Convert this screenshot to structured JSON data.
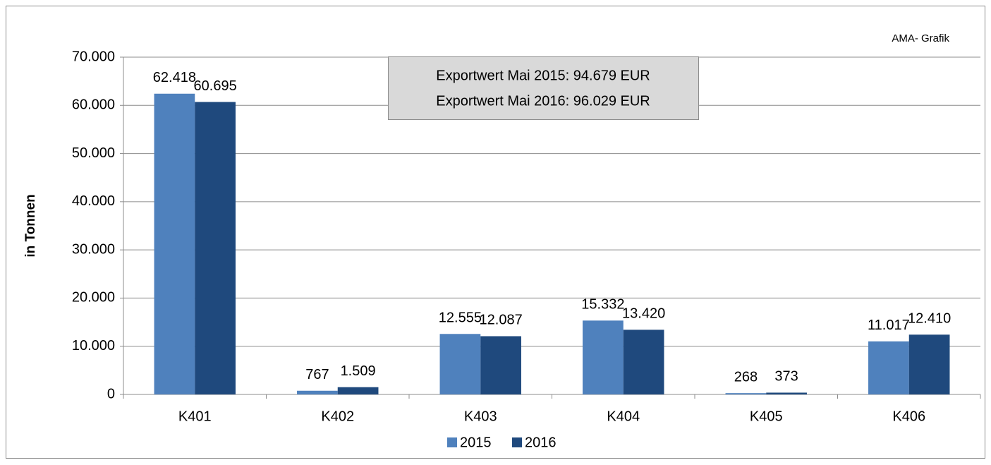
{
  "chart_data": {
    "type": "bar",
    "y_label": "in Tonnen",
    "source": "AMA- Grafik",
    "annotations": [
      "Exportwert Mai 2015: 94.679 EUR",
      "Exportwert Mai 2016: 96.029 EUR"
    ],
    "categories": [
      "K401",
      "K402",
      "K403",
      "K404",
      "K405",
      "K406"
    ],
    "series": [
      {
        "name": "2015",
        "color": "#4f81bd",
        "values": [
          62418,
          767,
          12555,
          15332,
          268,
          11017
        ],
        "value_labels": [
          "62.418",
          "767",
          "12.555",
          "15.332",
          "268",
          "11.017"
        ]
      },
      {
        "name": "2016",
        "color": "#1f497d",
        "values": [
          60695,
          1509,
          12087,
          13420,
          373,
          12410
        ],
        "value_labels": [
          "60.695",
          "1.509",
          "12.087",
          "13.420",
          "373",
          "12.410"
        ]
      }
    ],
    "ylim": [
      0,
      70000
    ],
    "yticks": [
      0,
      {
        "value": 10000,
        "label": "10.000"
      },
      {
        "value": 20000,
        "label": "20.000"
      },
      {
        "value": 30000,
        "label": "30.000"
      },
      {
        "value": 40000,
        "label": "40.000"
      },
      {
        "value": 50000,
        "label": "50.000"
      },
      {
        "value": 60000,
        "label": "60.000"
      },
      {
        "value": 70000,
        "label": "70.000"
      }
    ],
    "grid": true,
    "legend": "bottom"
  }
}
